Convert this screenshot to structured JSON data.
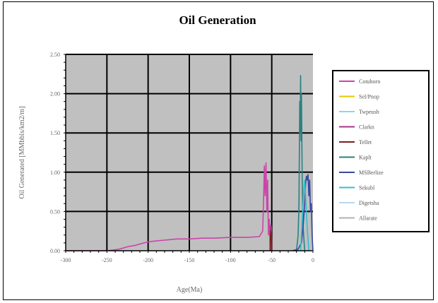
{
  "chart_data": {
    "type": "line",
    "title": "Oil Generation",
    "xlabel": "Age(Ma)",
    "ylabel": "Oil Generated [MMbbls/km2/m]",
    "xlim": [
      -300,
      0
    ],
    "ylim": [
      0,
      2.5
    ],
    "x_ticks": [
      "-300",
      "-250",
      "-200",
      "-150",
      "-100",
      "-50",
      "0"
    ],
    "y_ticks": [
      "0.00",
      "0.50",
      "1.00",
      "1.50",
      "2.00",
      "2.50"
    ],
    "grid": true,
    "legend_position": "right",
    "series": [
      {
        "name": "Cotuhorn",
        "color": "#cc44aa",
        "x": [
          -300,
          -250,
          -235,
          -225,
          -215,
          -205,
          -195,
          -185,
          -175,
          -165,
          -150,
          -135,
          -120,
          -100,
          -80,
          -65,
          -61,
          -60,
          -59,
          -58,
          -57,
          -56,
          -55,
          -54,
          -53,
          -52,
          -51
        ],
        "y": [
          0,
          0,
          0.02,
          0.05,
          0.07,
          0.1,
          0.12,
          0.13,
          0.14,
          0.15,
          0.15,
          0.16,
          0.16,
          0.17,
          0.17,
          0.18,
          0.25,
          0.6,
          1.08,
          0.7,
          1.12,
          0.5,
          0.9,
          0.2,
          0.4,
          0.05,
          0
        ]
      },
      {
        "name": "Sel/Pnop",
        "color": "#e8c800",
        "x": [],
        "y": []
      },
      {
        "name": "Twpeush",
        "color": "#88d8e8",
        "x": [],
        "y": []
      },
      {
        "name": "Clarkn",
        "color": "#aa3388",
        "x": [
          -52,
          -51.5,
          -51,
          -50.5,
          -50
        ],
        "y": [
          0,
          0.3,
          0.33,
          0.3,
          0
        ]
      },
      {
        "name": "Tellet",
        "color": "#7a2020",
        "x": [
          -52,
          -51.5,
          -51,
          -50.5,
          -50
        ],
        "y": [
          0,
          0.2,
          0.25,
          0.2,
          0
        ]
      },
      {
        "name": "Kaplt",
        "color": "#2a8080",
        "x": [
          -20,
          -18,
          -17,
          -16,
          -15.5,
          -15,
          -14.5,
          -14,
          -13,
          -12,
          -10
        ],
        "y": [
          0,
          0.2,
          0.6,
          1.9,
          1.5,
          2.23,
          1.4,
          2.0,
          0.9,
          0.3,
          0
        ]
      },
      {
        "name": "MSBerlize",
        "color": "#3848a0",
        "x": [
          -25,
          -18,
          -14,
          -12,
          -10,
          -9,
          -8,
          -7,
          -6,
          -5,
          -4,
          -3,
          -2,
          -1,
          0
        ],
        "y": [
          0,
          0.02,
          0.1,
          0.3,
          0.6,
          0.85,
          0.95,
          0.9,
          0.97,
          0.7,
          0.9,
          0.5,
          0.6,
          0.2,
          0
        ]
      },
      {
        "name": "Sekubl",
        "color": "#30c0d0",
        "x": [
          -15,
          -13,
          -11,
          -10,
          -9,
          -7,
          -5
        ],
        "y": [
          0,
          0.4,
          0.8,
          0.9,
          0.7,
          0.3,
          0
        ]
      },
      {
        "name": "Digetsha",
        "color": "#b8d8f0",
        "x": [],
        "y": []
      },
      {
        "name": "Allarate",
        "color": "#b0b0b0",
        "x": [],
        "y": []
      }
    ]
  }
}
